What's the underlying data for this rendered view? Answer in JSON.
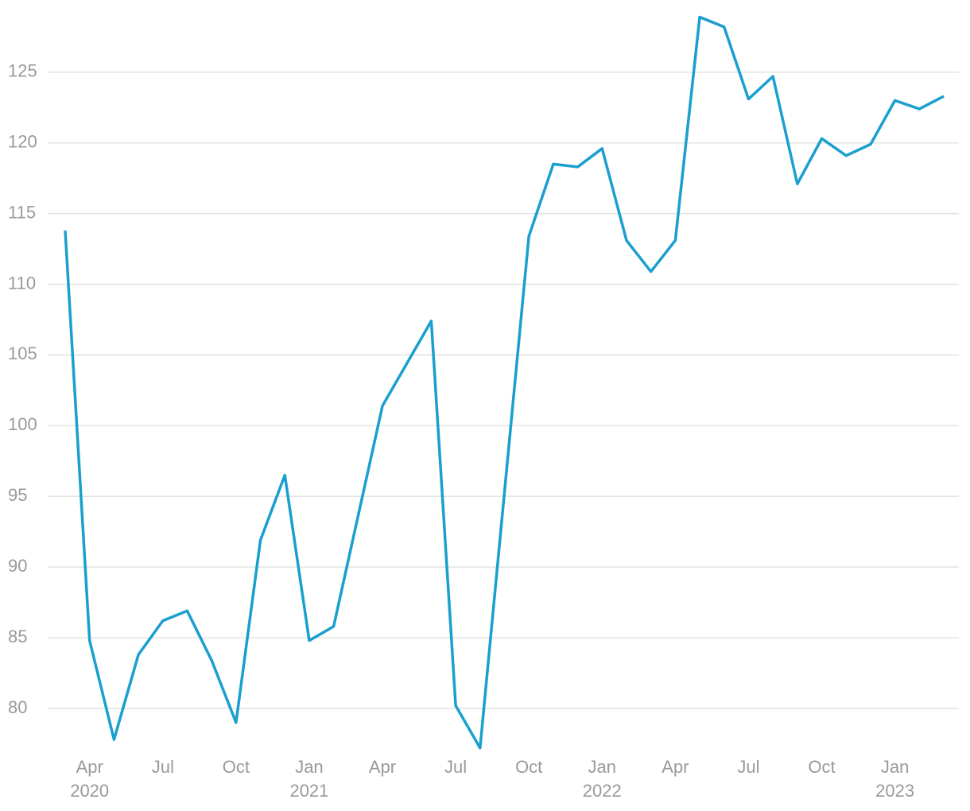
{
  "chart_data": {
    "type": "line",
    "categories": [
      null,
      "Apr",
      null,
      null,
      "Jul",
      null,
      null,
      "Oct",
      null,
      null,
      "Jan",
      null,
      null,
      "Apr",
      null,
      null,
      "Jul",
      null,
      null,
      "Oct",
      null,
      null,
      "Jan",
      null,
      null,
      "Apr",
      null,
      null,
      "Jul",
      null,
      null,
      "Oct",
      null,
      null,
      "Jan",
      null,
      null
    ],
    "years": [
      null,
      "2020",
      null,
      null,
      null,
      null,
      null,
      null,
      null,
      null,
      "2021",
      null,
      null,
      null,
      null,
      null,
      null,
      null,
      null,
      null,
      null,
      null,
      "2022",
      null,
      null,
      null,
      null,
      null,
      null,
      null,
      null,
      null,
      null,
      null,
      "2023",
      null,
      null
    ],
    "values": [
      113.8,
      84.8,
      77.8,
      83.8,
      86.2,
      86.9,
      83.4,
      79.0,
      91.9,
      96.5,
      84.8,
      85.8,
      93.6,
      101.4,
      104.4,
      107.4,
      80.2,
      77.2,
      95.3,
      113.4,
      118.5,
      118.3,
      119.6,
      113.1,
      110.9,
      113.1,
      128.9,
      128.2,
      123.1,
      124.7,
      117.1,
      120.3,
      119.1,
      119.9,
      123.0,
      122.4,
      123.3
    ],
    "color": "#1a9fcf",
    "ylim": [
      76.4,
      129.6
    ],
    "yticks": [
      80,
      85,
      90,
      95,
      100,
      105,
      110,
      115,
      120,
      125
    ],
    "grid": true
  }
}
